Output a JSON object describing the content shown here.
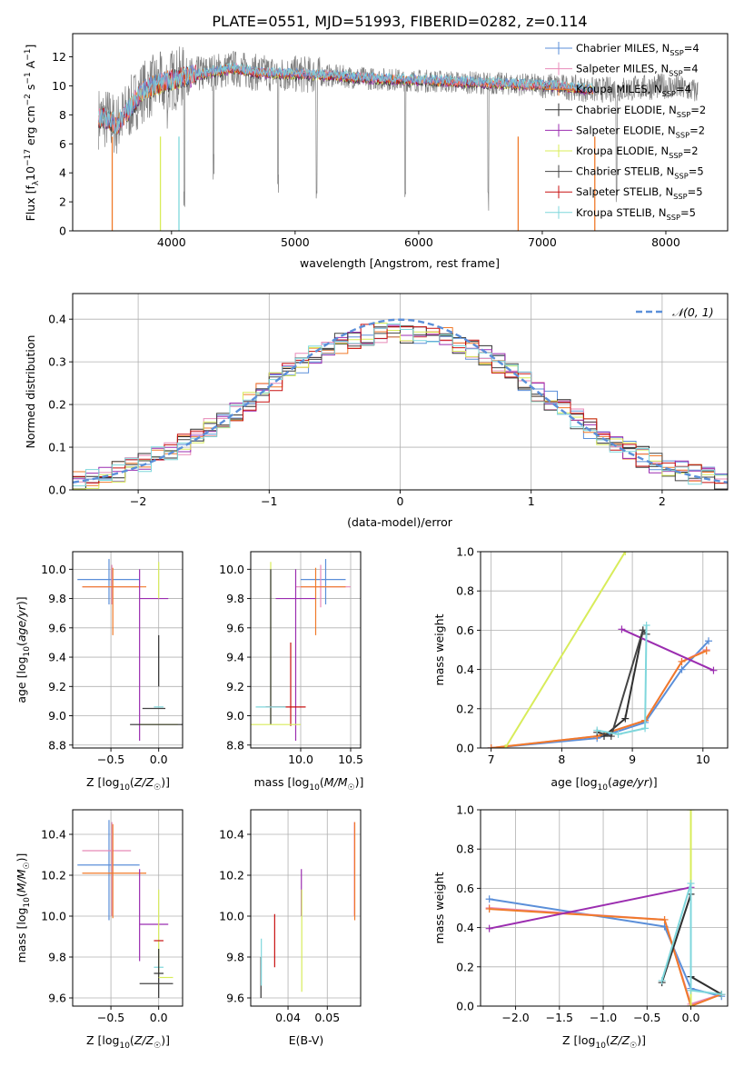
{
  "figure_title": "PLATE=0551, MJD=51993, FIBERID=0282, z=0.114",
  "colors": {
    "chabrier_miles": "#5b8fd9",
    "salpeter_miles": "#e88ab8",
    "kroupa_miles": "#f07a2a",
    "chabrier_elodie": "#2f2f2f",
    "salpeter_elodie": "#9b2db0",
    "kroupa_elodie": "#d8ec5a",
    "chabrier_stelib": "#444444",
    "salpeter_stelib": "#c81010",
    "kroupa_stelib": "#7fd7dc",
    "gaussian": "#5b8fd9",
    "spectrum_data": "#808080"
  },
  "legend_labels": [
    {
      "model": "Chabrier MILES, N",
      "sub": "SSP",
      "count": "=4",
      "color_key": "chabrier_miles"
    },
    {
      "model": "Salpeter MILES, N",
      "sub": "SSP",
      "count": "=4",
      "color_key": "salpeter_miles"
    },
    {
      "model": "Kroupa MILES, N",
      "sub": "SSP",
      "count": "=4",
      "color_key": "kroupa_miles"
    },
    {
      "model": "Chabrier ELODIE, N",
      "sub": "SSP",
      "count": "=2",
      "color_key": "chabrier_elodie"
    },
    {
      "model": "Salpeter ELODIE, N",
      "sub": "SSP",
      "count": "=2",
      "color_key": "salpeter_elodie"
    },
    {
      "model": "Kroupa ELODIE, N",
      "sub": "SSP",
      "count": "=2",
      "color_key": "kroupa_elodie"
    },
    {
      "model": "Chabrier STELIB, N",
      "sub": "SSP",
      "count": "=5",
      "color_key": "chabrier_stelib"
    },
    {
      "model": "Salpeter STELIB, N",
      "sub": "SSP",
      "count": "=5",
      "color_key": "salpeter_stelib"
    },
    {
      "model": "Kroupa STELIB, N",
      "sub": "SSP",
      "count": "=5",
      "color_key": "kroupa_stelib"
    }
  ],
  "chart_data": [
    {
      "id": "spectrum",
      "type": "line",
      "title": "PLATE=0551, MJD=51993, FIBERID=0282, z=0.114",
      "xlabel": "wavelength [Angstrom, rest frame]",
      "ylabel": "Flux [f_λ 10^-17 erg cm^-2 s^-1 A^-1]",
      "xlim": [
        3200,
        8500
      ],
      "ylim": [
        0,
        13.6
      ],
      "xticks": [
        4000,
        5000,
        6000,
        7000,
        8000
      ],
      "yticks": [
        0,
        2,
        4,
        6,
        8,
        10,
        12
      ],
      "data_range": [
        3410,
        8260
      ],
      "model_range": [
        3410,
        7420
      ],
      "continuum": [
        [
          3410,
          7.8
        ],
        [
          3500,
          7.7
        ],
        [
          3550,
          7.2
        ],
        [
          3650,
          8.3
        ],
        [
          3750,
          9.5
        ],
        [
          3850,
          10.0
        ],
        [
          3950,
          10.3
        ],
        [
          4100,
          10.6
        ],
        [
          4300,
          10.9
        ],
        [
          4500,
          11.2
        ],
        [
          4700,
          10.9
        ],
        [
          5000,
          10.8
        ],
        [
          5300,
          10.7
        ],
        [
          5600,
          10.5
        ],
        [
          5900,
          10.4
        ],
        [
          6200,
          10.3
        ],
        [
          6500,
          10.2
        ],
        [
          6800,
          10.1
        ],
        [
          7100,
          10.0
        ],
        [
          7420,
          9.7
        ],
        [
          7700,
          9.8
        ],
        [
          8000,
          10.0
        ],
        [
          8260,
          9.6
        ]
      ],
      "absorption_features": [
        [
          3934,
          8.0
        ],
        [
          3969,
          7.0
        ],
        [
          4102,
          1.5
        ],
        [
          4340,
          3.5
        ],
        [
          4861,
          2.0
        ],
        [
          5175,
          1.5
        ],
        [
          5890,
          1.0
        ],
        [
          6563,
          1.2
        ],
        [
          7600,
          1.5
        ]
      ],
      "drop_lines": [
        3520,
        3910,
        4060,
        6805,
        7425
      ],
      "grid": false
    },
    {
      "id": "residual-hist",
      "type": "histogram",
      "xlabel": "(data-model)/error",
      "ylabel": "Normed distribution",
      "xlim": [
        -2.5,
        2.5
      ],
      "ylim": [
        0,
        0.46
      ],
      "xticks": [
        -2,
        -1,
        0,
        1,
        2
      ],
      "yticks": [
        0.0,
        0.1,
        0.2,
        0.3,
        0.4
      ],
      "bin_width": 0.1,
      "gaussian_label": "𝒩(0, 1)",
      "legend_position": "top-right",
      "grid": true
    },
    {
      "id": "age-vs-z",
      "type": "errorbar",
      "xlabel": "Z [log10(Z/Z☉)]",
      "ylabel": "age  [log10(age/yr)]",
      "xlim": [
        -0.9,
        0.25
      ],
      "ylim": [
        8.78,
        10.12
      ],
      "xticks": [
        -0.5,
        0.0
      ],
      "yticks": [
        8.8,
        9.0,
        9.2,
        9.4,
        9.6,
        9.8,
        10.0
      ],
      "points": [
        {
          "color_key": "chabrier_miles",
          "x": -0.52,
          "xerr": [
            0.33,
            0.32
          ],
          "y": 9.93,
          "yerr": [
            0.17,
            0.14
          ]
        },
        {
          "color_key": "salpeter_miles",
          "x": -0.49,
          "xerr": [
            0.31,
            0.29
          ],
          "y": 9.88,
          "yerr": [
            0.12,
            0.15
          ]
        },
        {
          "color_key": "kroupa_miles",
          "x": -0.48,
          "xerr": [
            0.32,
            0.35
          ],
          "y": 9.88,
          "yerr": [
            0.33,
            0.13
          ]
        },
        {
          "color_key": "salpeter_elodie",
          "x": -0.2,
          "xerr": [
            0.0,
            0.3
          ],
          "y": 9.8,
          "yerr": [
            0.97,
            0.2
          ]
        },
        {
          "color_key": "kroupa_elodie",
          "x": 0.0,
          "xerr": [
            0.0,
            0.0
          ],
          "y": 9.8,
          "yerr": [
            0.0,
            0.25
          ]
        },
        {
          "color_key": "kroupa_elodie",
          "x": 0.0,
          "xerr": [
            0.2,
            0.2
          ],
          "y": 8.94,
          "yerr": [
            0.0,
            0.0
          ]
        },
        {
          "color_key": "chabrier_elodie",
          "x": 0.0,
          "xerr": [
            0.0,
            0.0
          ],
          "y": 9.2,
          "yerr": [
            0.0,
            0.35
          ]
        },
        {
          "color_key": "chabrier_stelib",
          "x": -0.05,
          "xerr": [
            0.12,
            0.12
          ],
          "y": 9.05,
          "yerr": [
            0.0,
            0.0
          ]
        },
        {
          "color_key": "kroupa_stelib",
          "x": 0.0,
          "xerr": [
            0.05,
            0.05
          ],
          "y": 9.06,
          "yerr": [
            0.0,
            0.0
          ]
        },
        {
          "color_key": "chabrier_elodie",
          "x": 0.0,
          "xerr": [
            0.3,
            0.25
          ],
          "y": 8.94,
          "yerr": [
            0.0,
            0.0
          ]
        }
      ],
      "grid": true
    },
    {
      "id": "age-vs-mass",
      "type": "errorbar",
      "xlabel": "mass [log10(M/M☉)]",
      "ylabel": "",
      "xlim": [
        9.5,
        10.6
      ],
      "ylim": [
        8.78,
        10.12
      ],
      "xticks": [
        10.0,
        10.5
      ],
      "yticks": [
        8.8,
        9.0,
        9.2,
        9.4,
        9.6,
        9.8,
        10.0
      ],
      "points": [
        {
          "color_key": "chabrier_miles",
          "x": 10.25,
          "xerr": [
            0.25,
            0.2
          ],
          "y": 9.93,
          "yerr": [
            0.17,
            0.14
          ]
        },
        {
          "color_key": "salpeter_miles",
          "x": 10.2,
          "xerr": [
            0.25,
            0.3
          ],
          "y": 9.88,
          "yerr": [
            0.14,
            0.15
          ]
        },
        {
          "color_key": "kroupa_miles",
          "x": 10.15,
          "xerr": [
            0.15,
            0.3
          ],
          "y": 9.88,
          "yerr": [
            0.33,
            0.13
          ]
        },
        {
          "color_key": "salpeter_elodie",
          "x": 9.95,
          "xerr": [
            0.2,
            0.2
          ],
          "y": 9.8,
          "yerr": [
            0.97,
            0.2
          ]
        },
        {
          "color_key": "kroupa_elodie",
          "x": 9.7,
          "xerr": [
            0.0,
            0.0
          ],
          "y": 9.6,
          "yerr": [
            0.66,
            0.45
          ]
        },
        {
          "color_key": "chabrier_elodie",
          "x": 9.7,
          "xerr": [
            0.0,
            0.0
          ],
          "y": 9.4,
          "yerr": [
            0.46,
            0.6
          ]
        },
        {
          "color_key": "salpeter_stelib",
          "x": 9.9,
          "xerr": [
            0.0,
            0.0
          ],
          "y": 9.2,
          "yerr": [
            0.27,
            0.3
          ]
        },
        {
          "color_key": "salpeter_stelib",
          "x": 9.85,
          "xerr": [
            0.2,
            0.2
          ],
          "y": 9.06,
          "yerr": [
            0.0,
            0.0
          ]
        },
        {
          "color_key": "kroupa_stelib",
          "x": 9.75,
          "xerr": [
            0.2,
            0.1
          ],
          "y": 9.06,
          "yerr": [
            0.0,
            0.0
          ]
        },
        {
          "color_key": "kroupa_elodie",
          "x": 9.7,
          "xerr": [
            0.2,
            0.3
          ],
          "y": 8.94,
          "yerr": [
            0.0,
            0.0
          ]
        }
      ],
      "grid": true
    },
    {
      "id": "massweight-vs-age",
      "type": "line",
      "xlabel": "age  [log10(age/yr)]",
      "ylabel": "mass weight",
      "xlim": [
        6.85,
        10.35
      ],
      "ylim": [
        0,
        1.0
      ],
      "xticks": [
        7,
        8,
        9,
        10
      ],
      "yticks": [
        0.0,
        0.2,
        0.4,
        0.6,
        0.8,
        1.0
      ],
      "series": [
        {
          "color_key": "chabrier_miles",
          "x": [
            7.0,
            8.5,
            9.18,
            9.7,
            10.08
          ],
          "y": [
            0.0,
            0.05,
            0.13,
            0.4,
            0.545
          ]
        },
        {
          "color_key": "salpeter_miles",
          "x": [
            7.0,
            8.5,
            9.18,
            9.7,
            10.05
          ],
          "y": [
            0.0,
            0.06,
            0.14,
            0.44,
            0.5
          ]
        },
        {
          "color_key": "kroupa_miles",
          "x": [
            7.0,
            8.5,
            9.18,
            9.7,
            10.05
          ],
          "y": [
            0.0,
            0.06,
            0.14,
            0.44,
            0.495
          ]
        },
        {
          "color_key": "kroupa_elodie",
          "x": [
            7.2,
            8.9
          ],
          "y": [
            0.0,
            1.0
          ]
        },
        {
          "color_key": "chabrier_elodie",
          "x": [
            8.6,
            8.9,
            9.15
          ],
          "y": [
            0.06,
            0.15,
            0.6
          ]
        },
        {
          "color_key": "salpeter_elodie",
          "x": [
            8.85,
            10.15
          ],
          "y": [
            0.605,
            0.395
          ]
        },
        {
          "color_key": "chabrier_stelib",
          "x": [
            8.5,
            8.7,
            9.15,
            9.2
          ],
          "y": [
            0.08,
            0.06,
            0.6,
            0.58
          ]
        },
        {
          "color_key": "kroupa_stelib",
          "x": [
            8.5,
            8.8,
            9.18,
            9.2
          ],
          "y": [
            0.09,
            0.07,
            0.1,
            0.625
          ]
        }
      ],
      "grid": true
    },
    {
      "id": "mass-vs-z",
      "type": "errorbar",
      "xlabel": "Z [log10(Z/Z☉)]",
      "ylabel": "mass [log10(M/M☉)]",
      "xlim": [
        -0.9,
        0.25
      ],
      "ylim": [
        9.56,
        10.52
      ],
      "xticks": [
        -0.5,
        0.0
      ],
      "yticks": [
        9.6,
        9.8,
        10.0,
        10.2,
        10.4
      ],
      "points": [
        {
          "color_key": "chabrier_miles",
          "x": -0.52,
          "xerr": [
            0.33,
            0.32
          ],
          "y": 10.25,
          "yerr": [
            0.27,
            0.22
          ]
        },
        {
          "color_key": "salpeter_miles",
          "x": -0.49,
          "xerr": [
            0.31,
            0.2
          ],
          "y": 10.32,
          "yerr": [
            0.32,
            0.14
          ]
        },
        {
          "color_key": "kroupa_miles",
          "x": -0.48,
          "xerr": [
            0.32,
            0.35
          ],
          "y": 10.21,
          "yerr": [
            0.22,
            0.24
          ]
        },
        {
          "color_key": "salpeter_elodie",
          "x": -0.2,
          "xerr": [
            0.0,
            0.3
          ],
          "y": 9.96,
          "yerr": [
            0.18,
            0.27
          ]
        },
        {
          "color_key": "kroupa_elodie",
          "x": 0.0,
          "xerr": [
            0.0,
            0.0
          ],
          "y": 10.0,
          "yerr": [
            0.3,
            0.13
          ]
        },
        {
          "color_key": "salpeter_stelib",
          "x": 0.0,
          "xerr": [
            0.05,
            0.05
          ],
          "y": 9.88,
          "yerr": [
            0.0,
            0.0
          ]
        },
        {
          "color_key": "kroupa_stelib",
          "x": 0.0,
          "xerr": [
            0.05,
            0.05
          ],
          "y": 9.75,
          "yerr": [
            0.0,
            0.0
          ]
        },
        {
          "color_key": "chabrier_elodie",
          "x": 0.0,
          "xerr": [
            0.05,
            0.05
          ],
          "y": 9.72,
          "yerr": [
            0.12,
            0.12
          ]
        },
        {
          "color_key": "kroupa_elodie",
          "x": 0.0,
          "xerr": [
            0.0,
            0.15
          ],
          "y": 9.7,
          "yerr": [
            0.0,
            0.0
          ]
        },
        {
          "color_key": "chabrier_stelib",
          "x": 0.0,
          "xerr": [
            0.2,
            0.15
          ],
          "y": 9.67,
          "yerr": [
            0.0,
            0.0
          ]
        }
      ],
      "grid": true
    },
    {
      "id": "mass-vs-ebv",
      "type": "errorbar",
      "xlabel": "E(B-V)",
      "ylabel": "",
      "xlim": [
        0.0305,
        0.0585
      ],
      "ylim": [
        9.56,
        10.52
      ],
      "xticks": [
        0.04,
        0.05
      ],
      "yticks": [
        9.6,
        9.8,
        10.0,
        10.2,
        10.4
      ],
      "points": [
        {
          "color_key": "chabrier_elodie",
          "x": 0.0331,
          "xerr": [
            0.0,
            0.0
          ],
          "y": 9.7,
          "yerr": [
            0.1,
            0.1
          ]
        },
        {
          "color_key": "kroupa_stelib",
          "x": 0.0332,
          "xerr": [
            0.0,
            0.0
          ],
          "y": 9.78,
          "yerr": [
            0.12,
            0.11
          ]
        },
        {
          "color_key": "salpeter_stelib",
          "x": 0.0366,
          "xerr": [
            0.0,
            0.0
          ],
          "y": 9.89,
          "yerr": [
            0.14,
            0.12
          ]
        },
        {
          "color_key": "salpeter_elodie",
          "x": 0.0434,
          "xerr": [
            0.0,
            0.0
          ],
          "y": 10.05,
          "yerr": [
            0.05,
            0.18
          ]
        },
        {
          "color_key": "kroupa_elodie",
          "x": 0.0435,
          "xerr": [
            0.0,
            0.0
          ],
          "y": 9.85,
          "yerr": [
            0.22,
            0.28
          ]
        },
        {
          "color_key": "salpeter_miles",
          "x": 0.0569,
          "xerr": [
            0.0,
            0.0
          ],
          "y": 10.25,
          "yerr": [
            0.25,
            0.21
          ]
        },
        {
          "color_key": "kroupa_miles",
          "x": 0.057,
          "xerr": [
            0.0,
            0.0
          ],
          "y": 10.22,
          "yerr": [
            0.24,
            0.24
          ]
        }
      ],
      "grid": true
    },
    {
      "id": "massweight-vs-z",
      "type": "line",
      "xlabel": "Z [log10(Z/Z☉)]",
      "ylabel": "mass weight",
      "xlim": [
        -2.4,
        0.42
      ],
      "ylim": [
        0,
        1.0
      ],
      "xticks": [
        -2.0,
        -1.5,
        -1.0,
        -0.5,
        0.0
      ],
      "yticks": [
        0.0,
        0.2,
        0.4,
        0.6,
        0.8,
        1.0
      ],
      "series": [
        {
          "color_key": "chabrier_miles",
          "x": [
            -2.3,
            -0.3,
            0.0,
            0.35
          ],
          "y": [
            0.545,
            0.405,
            0.09,
            0.05
          ]
        },
        {
          "color_key": "salpeter_miles",
          "x": [
            -2.3,
            -0.3,
            0.0,
            0.35
          ],
          "y": [
            0.5,
            0.44,
            0.01,
            0.06
          ]
        },
        {
          "color_key": "kroupa_miles",
          "x": [
            -2.3,
            -0.3,
            0.0,
            0.35
          ],
          "y": [
            0.495,
            0.44,
            0.0,
            0.06
          ]
        },
        {
          "color_key": "salpeter_elodie",
          "x": [
            -2.3,
            0.0
          ],
          "y": [
            0.395,
            0.605
          ]
        },
        {
          "color_key": "kroupa_elodie",
          "x": [
            0.0,
            0.0
          ],
          "y": [
            0.0,
            1.0
          ]
        },
        {
          "color_key": "chabrier_elodie",
          "x": [
            -0.33,
            0.0,
            0.0,
            0.35
          ],
          "y": [
            0.12,
            0.57,
            0.15,
            0.06
          ]
        },
        {
          "color_key": "kroupa_stelib",
          "x": [
            -0.33,
            0.0,
            0.0,
            0.35
          ],
          "y": [
            0.13,
            0.625,
            0.08,
            0.06
          ]
        }
      ],
      "grid": true
    }
  ]
}
